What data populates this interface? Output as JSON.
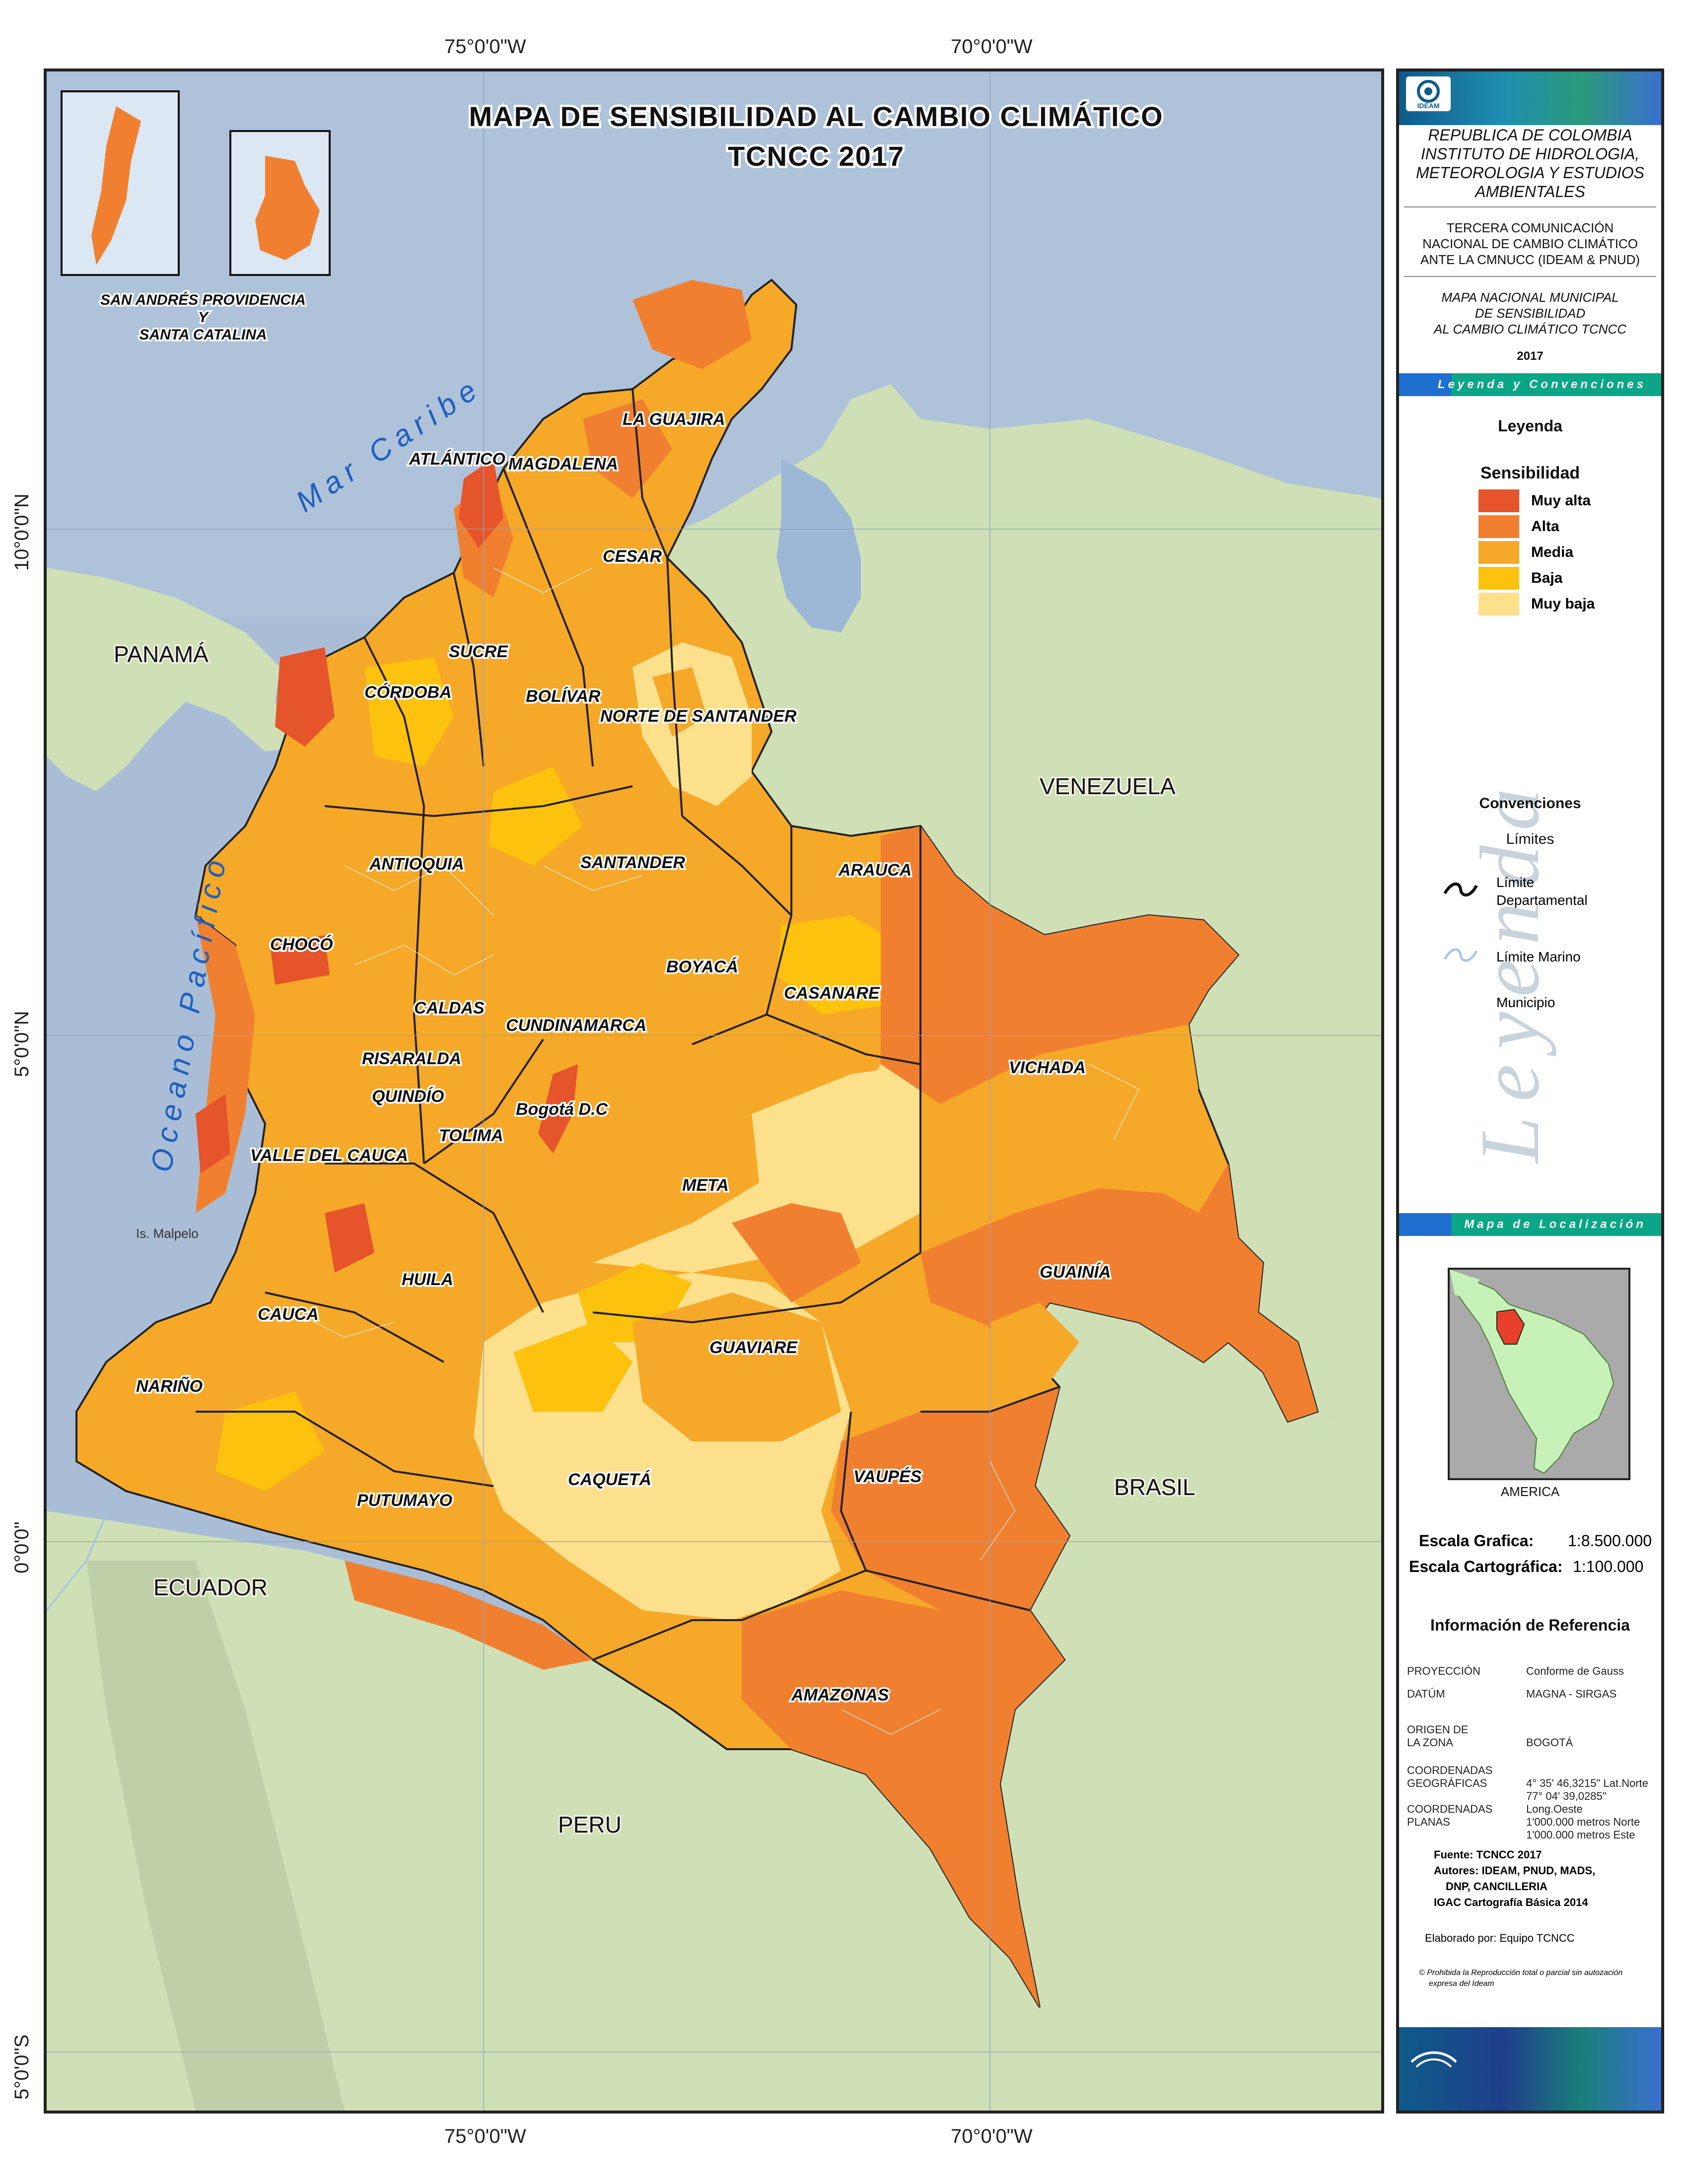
{
  "map": {
    "title_line1": "MAPA DE SENSIBILIDAD AL CAMBIO CLIMÁTICO",
    "title_line2": "TCNCC 2017",
    "graticule": {
      "top": [
        "75°0'0\"W",
        "70°0'0\"W"
      ],
      "bottom": [
        "75°0'0\"W",
        "70°0'0\"W"
      ],
      "left": [
        "10°0'0\"N",
        "5°0'0\"N",
        "0°0'0\"",
        "5°0'0\"S"
      ]
    },
    "inset_caption_line1": "SAN ANDRÉS PROVIDENCIA",
    "inset_caption_line2": "Y",
    "inset_caption_line3": "SANTA CATALINA",
    "seas": [
      "Mar Caribe",
      "Oceano Pacífico"
    ],
    "island_label": "Is. Malpelo",
    "countries": [
      "PANAMÁ",
      "VENEZUELA",
      "BRASIL",
      "ECUADOR",
      "PERU"
    ],
    "departments": [
      "LA GUAJIRA",
      "ATLÁNTICO",
      "MAGDALENA",
      "CESAR",
      "SUCRE",
      "BOLÍVAR",
      "CÓRDOBA",
      "NORTE DE SANTANDER",
      "ANTIOQUIA",
      "SANTANDER",
      "ARAUCA",
      "CHOCÓ",
      "BOYACÁ",
      "CASANARE",
      "CALDAS",
      "CUNDINAMARCA",
      "RISARALDA",
      "VICHADA",
      "QUINDÍO",
      "Bogotá D.C",
      "TOLIMA",
      "VALLE DEL CAUCA",
      "META",
      "GUAINÍA",
      "HUILA",
      "CAUCA",
      "GUAVIARE",
      "NARIÑO",
      "CAQUETÁ",
      "VAUPÉS",
      "PUTUMAYO",
      "AMAZONAS"
    ],
    "colors": {
      "muy_alta": "#e5542a",
      "alta": "#f08030",
      "media": "#f6a828",
      "baja": "#fcc20e",
      "muy_baja": "#fde08c",
      "sea": "#a9bed6",
      "land": "#cfe0b6",
      "venezuela_lake": "#9cb8d6",
      "highlight": "#e8402a"
    }
  },
  "panel": {
    "org_line1": "REPUBLICA DE COLOMBIA",
    "org_line2": "INSTITUTO DE HIDROLOGIA,",
    "org_line3": "METEOROLOGIA Y ESTUDIOS",
    "org_line4": "AMBIENTALES",
    "comm_line1": "TERCERA COMUNICACIÓN",
    "comm_line2": "NACIONAL DE CAMBIO CLIMÁTICO",
    "comm_line3": "ANTE LA CMNUCC (IDEAM & PNUD)",
    "mapname_line1": "MAPA NACIONAL MUNICIPAL",
    "mapname_line2": "DE SENSIBILIDAD",
    "mapname_line3": "AL CAMBIO CLIMÁTICO TCNCC",
    "year": "2017",
    "banner_legend": "Leyenda y Convenciones",
    "legend_heading": "Leyenda",
    "sensitivity_heading": "Sensibilidad",
    "legend_items": [
      "Muy alta",
      "Alta",
      "Media",
      "Baja",
      "Muy baja"
    ],
    "conventions_heading": "Convenciones",
    "limits_heading": "Límites",
    "limit_dept_line1": "Límite",
    "limit_dept_line2": "Departamental",
    "limit_marine": "Límite Marino",
    "municipality": "Municipio",
    "watermark": "Leyenda",
    "banner_location": "Mapa de Localización",
    "america_label": "AMERICA",
    "scale_graphic_label": "Escala  Grafica:",
    "scale_graphic_value": "1:8.500.000",
    "scale_cartographic_label": "Escala  Cartográfica:",
    "scale_cartographic_value": "1:100.000",
    "reference_heading": "Información de Referencia",
    "reference": [
      {
        "key": "PROYECCIÓN",
        "value": "Conforme de Gauss"
      },
      {
        "key": "DATÚM",
        "value": "MAGNA - SIRGAS"
      },
      {
        "key": "ORIGEN DE\nLA ZONA",
        "value": "BOGOTÁ"
      },
      {
        "key": "COORDENADAS\nGEOGRÁFICAS",
        "value": "4° 35' 46,3215\"  Lat.Norte\n77° 04' 39,0285\" Long.Oeste"
      },
      {
        "key": "COORDENADAS\nPLANAS",
        "value": "1'000.000 metros Norte\n1'000.000 metros Este"
      }
    ],
    "source_line1": "Fuente: TCNCC 2017",
    "source_line2": "Autores: IDEAM, PNUD, MADS,",
    "source_line3": "DNP, CANCILLERIA",
    "source_line4": "IGAC Cartografía Básica 2014",
    "prepared_by": "Elaborado por: Equipo TCNCC",
    "copyright_line1": "© Prohibida la Reproducción total o parcial sin autozación",
    "copyright_line2": "expresa del Ideam",
    "logo_text": "IDEAM"
  }
}
